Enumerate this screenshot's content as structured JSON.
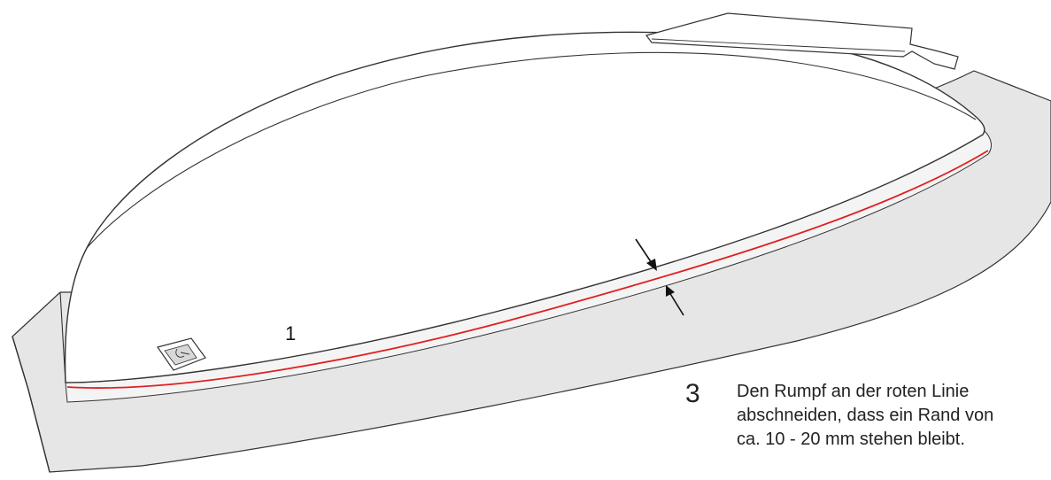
{
  "figure": {
    "part_label": "1",
    "step_number": "3",
    "instruction_lines": [
      "Den Rumpf an der roten Linie",
      "abschneiden, dass ein Rand von",
      "ca. 10 - 20 mm stehen bleibt."
    ]
  },
  "colors": {
    "cut_line": "#e02020",
    "flange_fill": "#e6e6e6",
    "outline": "#333333",
    "hull_fill": "#ffffff",
    "arrow": "#111111"
  },
  "icons": {
    "part_marker": "bracket-block-icon",
    "width_arrows": "dimension-arrow-icon"
  }
}
